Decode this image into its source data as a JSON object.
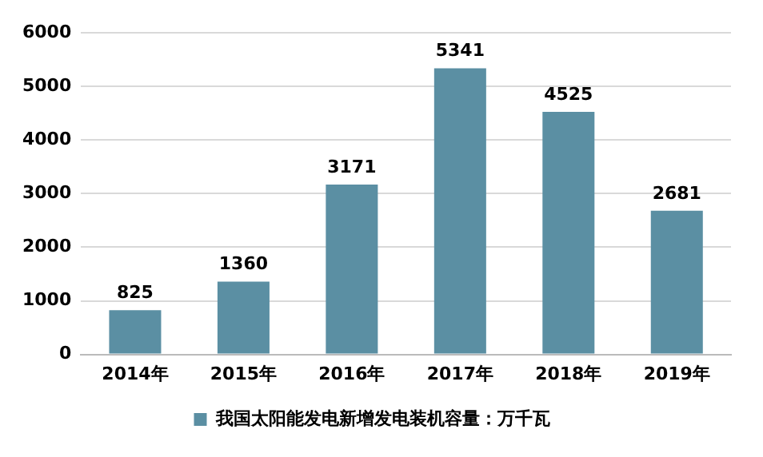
{
  "chart_data": {
    "type": "bar",
    "categories": [
      "2014年",
      "2015年",
      "2016年",
      "2017年",
      "2018年",
      "2019年"
    ],
    "series": [
      {
        "name": "我国太阳能发电新增发电装机容量：万千瓦",
        "color": "#5b8fa3",
        "values": [
          825,
          1360,
          3171,
          5341,
          4525,
          2681
        ]
      }
    ],
    "ylim": [
      0,
      6000
    ],
    "yticks": [
      0,
      1000,
      2000,
      3000,
      4000,
      5000,
      6000
    ],
    "grid": "y",
    "legend": "bottom",
    "data_labels": true
  }
}
